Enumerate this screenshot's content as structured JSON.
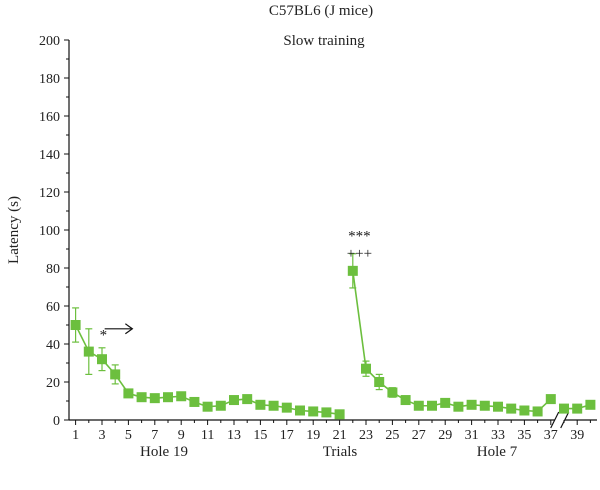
{
  "colors": {
    "series": "#6cbf3e",
    "axis": "#111111",
    "text": "#222222"
  },
  "chart_data": {
    "type": "line",
    "title": "C57BL6 (J mice)",
    "subtitle": "Slow training",
    "ylabel": "Latency (s)",
    "xlabel": "Trials",
    "ylim": [
      0,
      200
    ],
    "yticks": [
      0,
      20,
      40,
      60,
      80,
      100,
      120,
      140,
      160,
      180,
      200
    ],
    "xlim": [
      0.5,
      40.5
    ],
    "xtick_labels": [
      1,
      3,
      5,
      7,
      9,
      11,
      13,
      15,
      17,
      19,
      21,
      23,
      25,
      27,
      29,
      31,
      33,
      35,
      37,
      39
    ],
    "axis_break_after_x": 37,
    "phase_labels": [
      "Hole 19",
      "Hole 7"
    ],
    "segments": [
      {
        "x": [
          1,
          2,
          3,
          4,
          5,
          6,
          7,
          8,
          9,
          10,
          11,
          12,
          13,
          14,
          15,
          16,
          17,
          18,
          19,
          20,
          21
        ],
        "y": [
          50,
          36,
          32,
          24,
          14,
          12,
          11.5,
          12,
          12.5,
          9.5,
          7,
          7.5,
          10.5,
          11,
          8,
          7.5,
          6.5,
          5,
          4.5,
          4,
          3
        ],
        "err": [
          9,
          12,
          6,
          5,
          2,
          1.5,
          1.5,
          1.5,
          2,
          1.5,
          1.5,
          1.5,
          1.5,
          1.5,
          1.5,
          1.5,
          1.5,
          1,
          1,
          1,
          1
        ]
      },
      {
        "x": [
          22,
          23,
          24,
          25,
          26,
          27,
          28,
          29,
          30,
          31,
          32,
          33,
          34,
          35,
          36,
          37
        ],
        "y": [
          78.5,
          27,
          20,
          14.5,
          10.5,
          7.5,
          7.5,
          9,
          7,
          8,
          7.5,
          7,
          6,
          5,
          4.5,
          11
        ],
        "err": [
          9,
          4,
          4,
          2.5,
          2,
          1.5,
          1.5,
          1.5,
          1.5,
          1.5,
          1.5,
          1.5,
          1.5,
          1.5,
          1.5,
          2
        ]
      },
      {
        "x": [
          38,
          39,
          40
        ],
        "y": [
          6,
          6,
          8
        ],
        "err": [
          1.5,
          1,
          1
        ]
      }
    ],
    "annotations": [
      {
        "text": "*",
        "x": 3.1,
        "y": 45
      },
      {
        "text": "***",
        "x": 22.5,
        "y": 97
      },
      {
        "text": "+++",
        "x": 22.5,
        "y": 88
      }
    ],
    "arrow": {
      "x_start": 3.2,
      "x_end": 5.3,
      "y": 48
    }
  }
}
